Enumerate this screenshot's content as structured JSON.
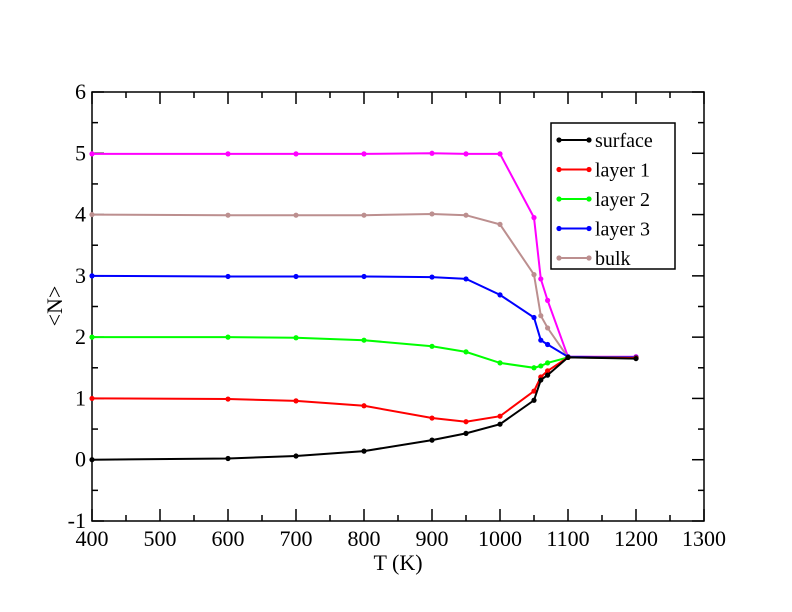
{
  "chart_data": {
    "type": "line",
    "title": "",
    "xlabel": "T (K)",
    "ylabel": "<N>",
    "xlim": [
      400,
      1300
    ],
    "ylim": [
      -1,
      6
    ],
    "xticks": [
      400,
      500,
      600,
      700,
      800,
      900,
      1000,
      1100,
      1200,
      1300
    ],
    "yticks": [
      -1,
      0,
      1,
      2,
      3,
      4,
      5,
      6
    ],
    "grid": false,
    "legend_position": "top-right",
    "series": [
      {
        "name": "surface",
        "color": "#000000",
        "x": [
          400,
          600,
          700,
          800,
          900,
          950,
          1000,
          1050,
          1060,
          1070,
          1100,
          1200
        ],
        "y": [
          0.0,
          0.02,
          0.06,
          0.14,
          0.32,
          0.43,
          0.58,
          0.97,
          1.3,
          1.38,
          1.67,
          1.65
        ]
      },
      {
        "name": "layer 1",
        "color": "#ff0000",
        "x": [
          400,
          600,
          700,
          800,
          900,
          950,
          1000,
          1050,
          1060,
          1070,
          1100,
          1200
        ],
        "y": [
          1.0,
          0.99,
          0.96,
          0.88,
          0.68,
          0.62,
          0.71,
          1.12,
          1.35,
          1.45,
          1.67,
          1.66
        ]
      },
      {
        "name": "layer 2",
        "color": "#00ff00",
        "x": [
          400,
          600,
          700,
          800,
          900,
          950,
          1000,
          1050,
          1060,
          1070,
          1100,
          1200
        ],
        "y": [
          2.0,
          2.0,
          1.99,
          1.95,
          1.85,
          1.76,
          1.58,
          1.5,
          1.53,
          1.58,
          1.67,
          1.66
        ]
      },
      {
        "name": "layer 3",
        "color": "#0000ff",
        "x": [
          400,
          600,
          700,
          800,
          900,
          950,
          1000,
          1050,
          1060,
          1070,
          1100,
          1200
        ],
        "y": [
          3.0,
          2.99,
          2.99,
          2.99,
          2.98,
          2.95,
          2.69,
          2.32,
          1.95,
          1.88,
          1.68,
          1.67
        ]
      },
      {
        "name": "bulk",
        "color": "#bc8f8f",
        "x": [
          400,
          600,
          700,
          800,
          900,
          950,
          1000,
          1050,
          1060,
          1070,
          1100,
          1200
        ],
        "y": [
          4.0,
          3.99,
          3.99,
          3.99,
          4.01,
          3.99,
          3.84,
          3.02,
          2.35,
          2.15,
          1.67,
          1.67
        ]
      },
      {
        "name": "",
        "color": "#ff00ff",
        "x": [
          400,
          600,
          700,
          800,
          900,
          950,
          1000,
          1050,
          1060,
          1070,
          1100,
          1200
        ],
        "y": [
          4.99,
          4.99,
          4.99,
          4.99,
          5.0,
          4.99,
          4.99,
          3.95,
          2.95,
          2.6,
          1.68,
          1.68
        ]
      }
    ]
  }
}
